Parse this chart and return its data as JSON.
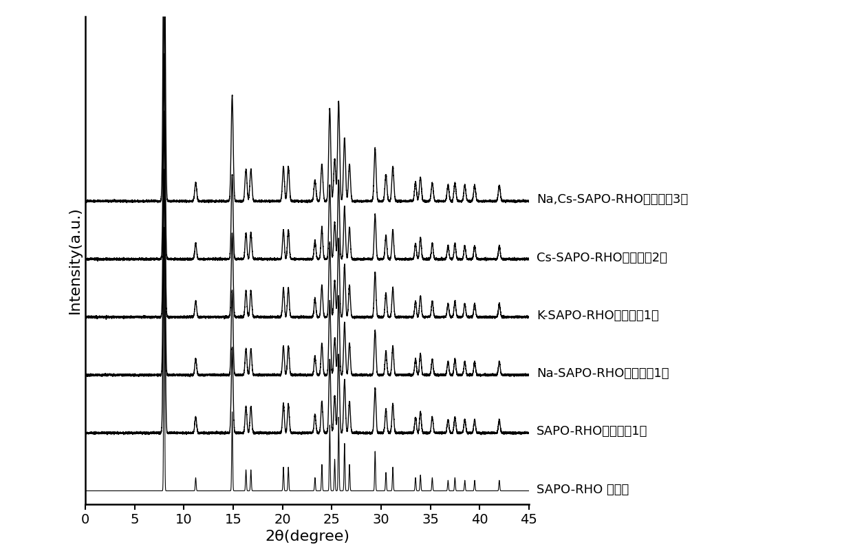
{
  "xlabel": "2θ(degree)",
  "ylabel": "Intensity(a.u.)",
  "xlim": [
    0,
    45
  ],
  "x_ticks": [
    0,
    5,
    10,
    15,
    20,
    25,
    30,
    35,
    40,
    45
  ],
  "background_color": "#ffffff",
  "line_color": "#000000",
  "series_labels": [
    "SAPO-RHO 模拟图",
    "SAPO-RHO（实施例1）",
    "Na-SAPO-RHO（实施例1）",
    "K-SAPO-RHO（对比例1）",
    "Cs-SAPO-RHO（实施例2）",
    "Na,Cs-SAPO-RHO（实施例3）"
  ],
  "peaks": [
    8.0,
    11.2,
    14.9,
    16.3,
    16.8,
    20.1,
    20.6,
    23.3,
    24.0,
    24.8,
    25.3,
    25.7,
    26.3,
    26.8,
    29.4,
    30.5,
    31.2,
    33.5,
    34.0,
    35.2,
    36.8,
    37.5,
    38.5,
    39.5,
    42.0
  ],
  "peak_intensities": {
    "sim": [
      10.0,
      0.5,
      3.0,
      0.8,
      0.8,
      0.9,
      0.9,
      0.5,
      1.0,
      2.5,
      1.2,
      2.8,
      1.8,
      1.0,
      1.5,
      0.7,
      0.9,
      0.5,
      0.6,
      0.5,
      0.4,
      0.5,
      0.4,
      0.4,
      0.4
    ],
    "sapo": [
      10.0,
      0.6,
      3.2,
      1.0,
      1.0,
      1.1,
      1.1,
      0.7,
      1.2,
      2.8,
      1.4,
      3.0,
      2.0,
      1.2,
      1.7,
      0.9,
      1.1,
      0.6,
      0.8,
      0.6,
      0.5,
      0.6,
      0.5,
      0.5,
      0.5
    ],
    "na": [
      10.0,
      0.6,
      3.2,
      1.0,
      1.0,
      1.1,
      1.1,
      0.7,
      1.2,
      2.8,
      1.4,
      3.0,
      2.0,
      1.2,
      1.7,
      0.9,
      1.1,
      0.6,
      0.8,
      0.6,
      0.5,
      0.6,
      0.5,
      0.5,
      0.5
    ],
    "k": [
      10.0,
      0.6,
      3.2,
      1.0,
      1.0,
      1.1,
      1.1,
      0.7,
      1.2,
      2.8,
      1.4,
      3.0,
      2.0,
      1.2,
      1.7,
      0.9,
      1.1,
      0.6,
      0.8,
      0.6,
      0.5,
      0.6,
      0.5,
      0.5,
      0.5
    ],
    "cs": [
      10.0,
      0.6,
      3.2,
      1.0,
      1.0,
      1.1,
      1.1,
      0.7,
      1.2,
      2.8,
      1.4,
      3.0,
      2.0,
      1.2,
      1.7,
      0.9,
      1.1,
      0.6,
      0.8,
      0.6,
      0.5,
      0.6,
      0.5,
      0.5,
      0.5
    ],
    "nacs": [
      13.0,
      0.7,
      4.0,
      1.2,
      1.2,
      1.3,
      1.3,
      0.8,
      1.4,
      3.5,
      1.6,
      3.8,
      2.4,
      1.4,
      2.0,
      1.0,
      1.3,
      0.7,
      0.9,
      0.7,
      0.6,
      0.7,
      0.6,
      0.6,
      0.6
    ]
  },
  "offsets": [
    0.0,
    2.2,
    4.4,
    6.6,
    8.8,
    11.0
  ],
  "axis_fontsize": 16,
  "label_fontsize": 13,
  "tick_fontsize": 14
}
